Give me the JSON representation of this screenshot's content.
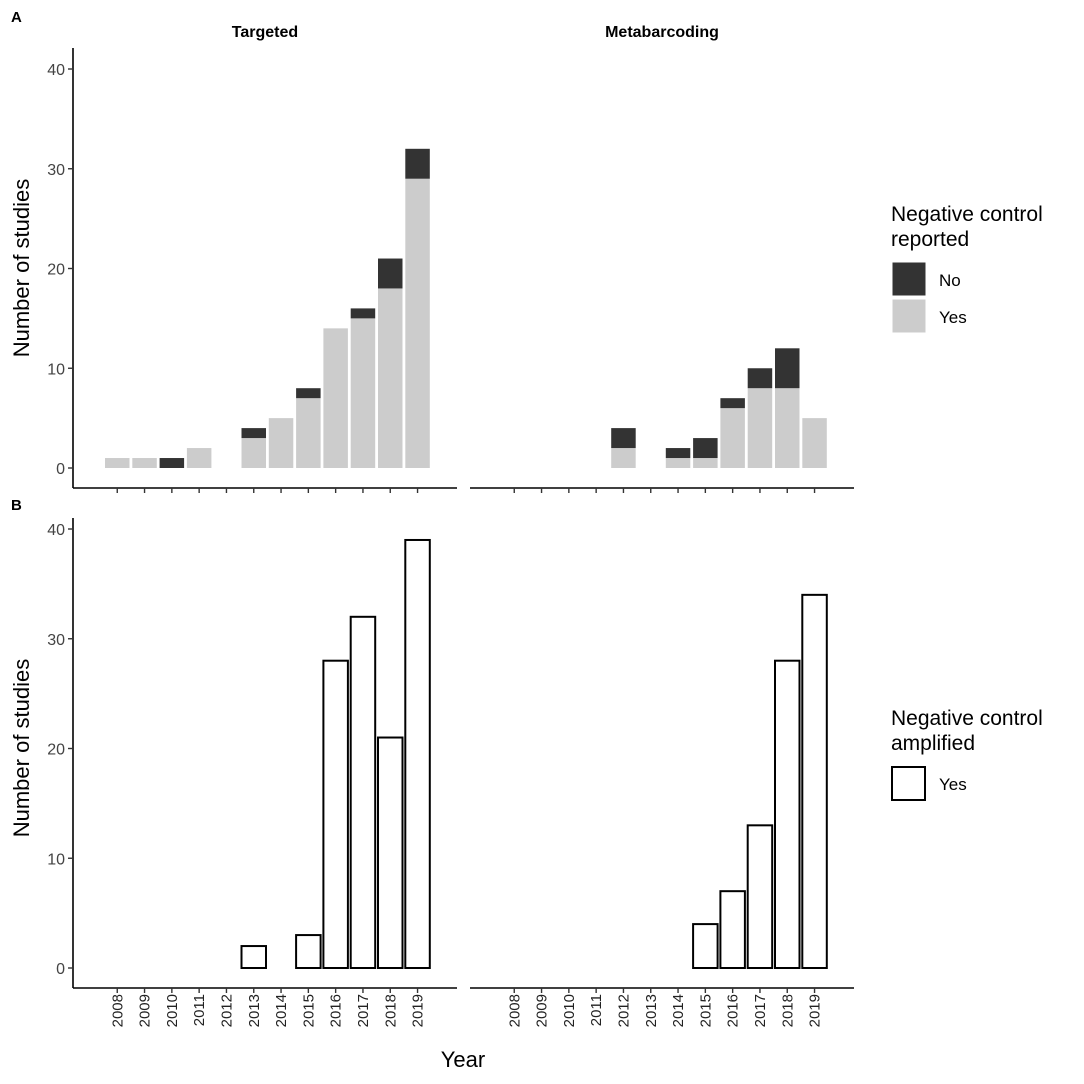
{
  "chart_data": [
    {
      "type": "bar",
      "panel_label": "A",
      "stacked": true,
      "ylabel": "Number of studies",
      "ylim": [
        0,
        40
      ],
      "yticks": [
        0,
        10,
        20,
        30,
        40
      ],
      "categories": [
        "2008",
        "2009",
        "2010",
        "2011",
        "2012",
        "2013",
        "2014",
        "2015",
        "2016",
        "2017",
        "2018",
        "2019"
      ],
      "legend": {
        "title_lines": [
          "Negative control",
          "reported"
        ],
        "entries": [
          {
            "name": "No",
            "color": "#333333"
          },
          {
            "name": "Yes",
            "color": "#cccccc"
          }
        ]
      },
      "facets": [
        {
          "title": "Targeted",
          "series": [
            {
              "name": "Yes",
              "color": "#cccccc",
              "values": [
                1,
                1,
                0,
                2,
                0,
                3,
                5,
                7,
                14,
                15,
                18,
                29
              ]
            },
            {
              "name": "No",
              "color": "#333333",
              "values": [
                0,
                0,
                1,
                0,
                0,
                1,
                0,
                1,
                0,
                1,
                3,
                3
              ]
            }
          ]
        },
        {
          "title": "Metabarcoding",
          "series": [
            {
              "name": "Yes",
              "color": "#cccccc",
              "values": [
                0,
                0,
                0,
                0,
                2,
                0,
                1,
                1,
                6,
                8,
                8,
                5
              ]
            },
            {
              "name": "No",
              "color": "#333333",
              "values": [
                0,
                0,
                0,
                0,
                2,
                0,
                1,
                2,
                1,
                2,
                4,
                0
              ]
            }
          ]
        }
      ]
    },
    {
      "type": "bar",
      "panel_label": "B",
      "stacked": false,
      "xlabel": "Year",
      "ylabel": "Number of studies",
      "ylim": [
        0,
        40
      ],
      "yticks": [
        0,
        10,
        20,
        30,
        40
      ],
      "categories": [
        "2008",
        "2009",
        "2010",
        "2011",
        "2012",
        "2013",
        "2014",
        "2015",
        "2016",
        "2017",
        "2018",
        "2019"
      ],
      "legend": {
        "title_lines": [
          "Negative control",
          "amplified"
        ],
        "entries": [
          {
            "name": "Yes",
            "color": "#ffffff"
          }
        ]
      },
      "facets": [
        {
          "title": "Targeted",
          "series": [
            {
              "name": "Yes",
              "color": "#ffffff",
              "values": [
                0,
                0,
                0,
                0,
                0,
                2,
                0,
                3,
                28,
                32,
                21,
                39
              ]
            }
          ]
        },
        {
          "title": "Metabarcoding",
          "series": [
            {
              "name": "Yes",
              "color": "#ffffff",
              "values": [
                0,
                0,
                0,
                0,
                0,
                0,
                0,
                4,
                7,
                13,
                28,
                34
              ]
            }
          ]
        }
      ]
    }
  ]
}
